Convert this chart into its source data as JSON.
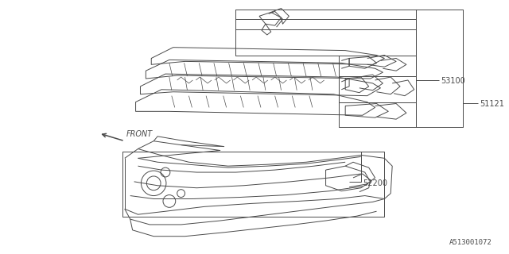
{
  "bg_color": "#ffffff",
  "line_color": "#4a4a4a",
  "label_color": "#4a4a4a",
  "diagram_id": "A513001072",
  "label_fontsize": 7.0,
  "id_fontsize": 6.5
}
